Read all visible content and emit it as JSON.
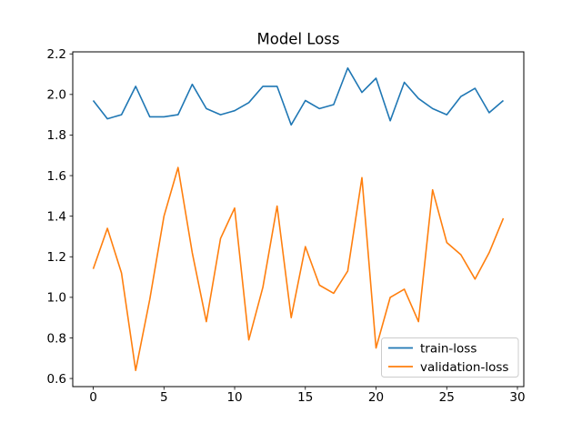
{
  "title": "Model Loss",
  "legend": {
    "train_label": "train-loss",
    "validation_label": "validation-loss",
    "position": "lower right",
    "border_color": "#cccccc",
    "background": "#ffffff"
  },
  "axes": {
    "spine_color": "#000000",
    "background": "#ffffff",
    "x_tick_labels": [
      "0",
      "5",
      "10",
      "15",
      "20",
      "25",
      "30"
    ],
    "y_tick_labels": [
      "0.6",
      "0.8",
      "1.0",
      "1.2",
      "1.4",
      "1.6",
      "1.8",
      "2.0",
      "2.2"
    ]
  },
  "chart_data": {
    "type": "line",
    "title": "Model Loss",
    "xlabel": "",
    "ylabel": "",
    "grid": false,
    "legend_position": "lower right",
    "x": [
      0,
      1,
      2,
      3,
      4,
      5,
      6,
      7,
      8,
      9,
      10,
      11,
      12,
      13,
      14,
      15,
      16,
      17,
      18,
      19,
      20,
      21,
      22,
      23,
      24,
      25,
      26,
      27,
      28,
      29
    ],
    "xticks": [
      0,
      5,
      10,
      15,
      20,
      25,
      30
    ],
    "yticks": [
      0.6,
      0.8,
      1.0,
      1.2,
      1.4,
      1.6,
      1.8,
      2.0,
      2.2
    ],
    "xlim": [
      -1.45,
      30.45
    ],
    "ylim": [
      0.56,
      2.21
    ],
    "series": [
      {
        "name": "train-loss",
        "color": "#1f77b4",
        "values": [
          1.97,
          1.88,
          1.9,
          2.04,
          1.89,
          1.89,
          1.9,
          2.05,
          1.93,
          1.9,
          1.92,
          1.96,
          2.04,
          2.04,
          1.85,
          1.97,
          1.93,
          1.95,
          2.13,
          2.01,
          2.08,
          1.87,
          2.06,
          1.98,
          1.93,
          1.9,
          1.99,
          2.03,
          1.91,
          1.97
        ]
      },
      {
        "name": "validation-loss",
        "color": "#ff7f0e",
        "values": [
          1.14,
          1.34,
          1.12,
          0.64,
          0.99,
          1.4,
          1.64,
          1.22,
          0.88,
          1.29,
          1.44,
          0.79,
          1.05,
          1.45,
          0.9,
          1.25,
          1.06,
          1.02,
          1.13,
          1.59,
          0.75,
          1.0,
          1.04,
          0.88,
          1.53,
          1.27,
          1.21,
          1.09,
          1.22,
          1.39
        ]
      }
    ]
  }
}
